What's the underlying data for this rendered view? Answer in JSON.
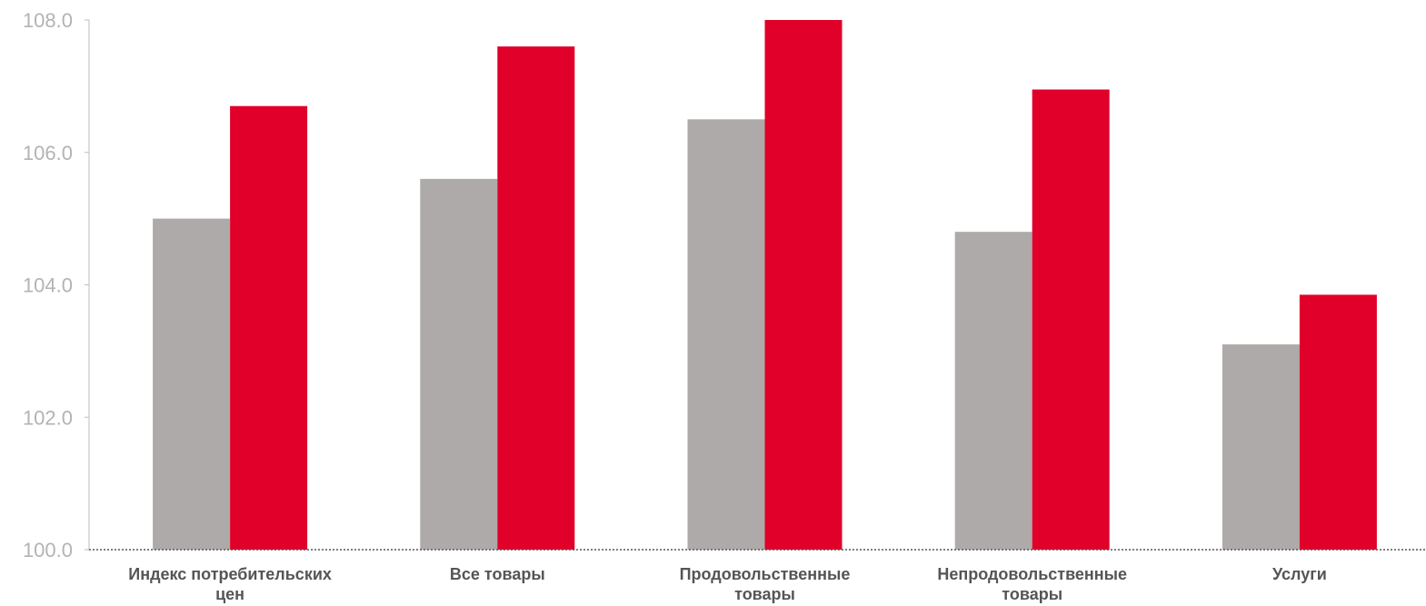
{
  "chart_data": {
    "type": "bar",
    "title": "",
    "xlabel": "",
    "ylabel": "",
    "ylim": [
      100,
      108
    ],
    "yticks": [
      "100.0",
      "102.0",
      "104.0",
      "106.0",
      "108.0"
    ],
    "grid": false,
    "legend": "none",
    "categories": [
      [
        "Индекс потребительских",
        "цен"
      ],
      [
        "Все товары"
      ],
      [
        "Продовольственные",
        "товары"
      ],
      [
        "Непродовольственные",
        "товары"
      ],
      [
        "Услуги"
      ]
    ],
    "series": [
      {
        "color": "#aeaaa9",
        "values": [
          105.0,
          105.6,
          106.5,
          104.8,
          103.1
        ]
      },
      {
        "color": "#e0002a",
        "values": [
          106.7,
          107.6,
          108.0,
          106.95,
          103.85
        ]
      }
    ]
  }
}
